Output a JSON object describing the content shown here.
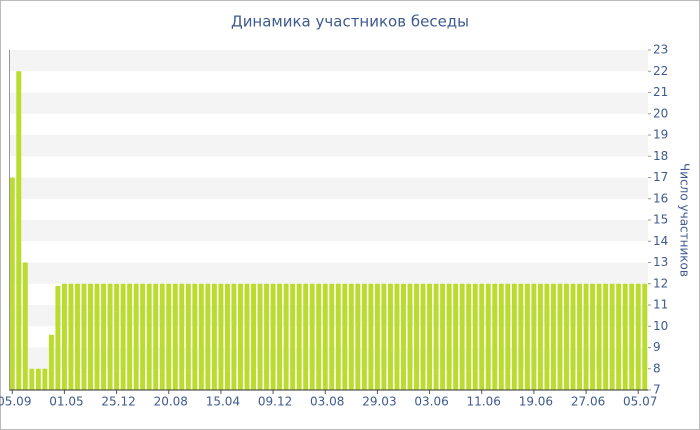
{
  "chart_data": {
    "type": "bar",
    "title": "Динамика участников беседы",
    "y_label": "Число участников",
    "categories": [
      "05.09",
      null,
      null,
      null,
      null,
      null,
      null,
      null,
      "01.05",
      null,
      null,
      null,
      null,
      null,
      null,
      null,
      "25.12",
      null,
      null,
      null,
      null,
      null,
      null,
      null,
      "20.08",
      null,
      null,
      null,
      null,
      null,
      null,
      null,
      "15.04",
      null,
      null,
      null,
      null,
      null,
      null,
      null,
      "09.12",
      null,
      null,
      null,
      null,
      null,
      null,
      null,
      "03.08",
      null,
      null,
      null,
      null,
      null,
      null,
      null,
      "29.03",
      null,
      null,
      null,
      null,
      null,
      null,
      null,
      "03.06",
      null,
      null,
      null,
      null,
      null,
      null,
      null,
      "11.06",
      null,
      null,
      null,
      null,
      null,
      null,
      null,
      "19.06",
      null,
      null,
      null,
      null,
      null,
      null,
      null,
      "27.06",
      null,
      null,
      null,
      null,
      null,
      null,
      null,
      "05.07",
      null
    ],
    "values": [
      17,
      22,
      13,
      8,
      8,
      8,
      9.6,
      11.9,
      12,
      12,
      12,
      12,
      12,
      12,
      12,
      12,
      12,
      12,
      12,
      12,
      12,
      12,
      12,
      12,
      12,
      12,
      12,
      12,
      12,
      12,
      12,
      12,
      12,
      12,
      12,
      12,
      12,
      12,
      12,
      12,
      12,
      12,
      12,
      12,
      12,
      12,
      12,
      12,
      12,
      12,
      12,
      12,
      12,
      12,
      12,
      12,
      12,
      12,
      12,
      12,
      12,
      12,
      12,
      12,
      12,
      12,
      12,
      12,
      12,
      12,
      12,
      12,
      12,
      12,
      12,
      12,
      12,
      12,
      12,
      12,
      12,
      12,
      12,
      12,
      12,
      12,
      12,
      12,
      12,
      12,
      12,
      12,
      12,
      12,
      12,
      12,
      12,
      12
    ],
    "color": "#b9dc2e",
    "ylim": [
      7,
      23
    ],
    "yticks": [
      7,
      8,
      9,
      10,
      11,
      12,
      13,
      14,
      15,
      16,
      17,
      18,
      19,
      20,
      21,
      22,
      23
    ],
    "grid": true
  }
}
